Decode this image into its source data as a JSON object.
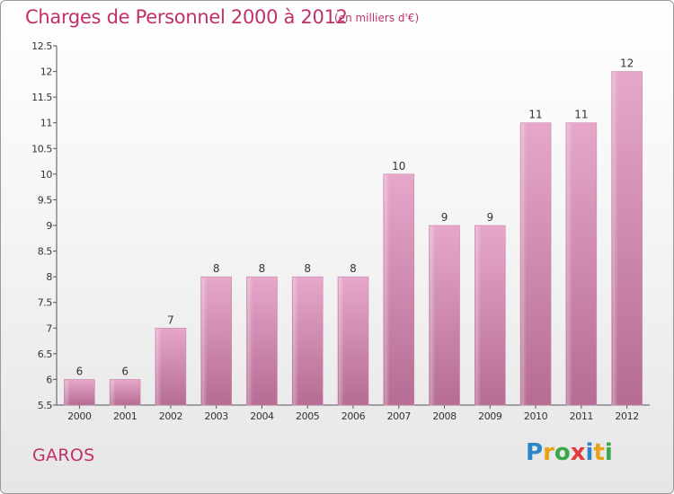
{
  "header": {
    "title": "Charges de Personnel 2000 à 2012",
    "subtitle": "(en milliers d'€)"
  },
  "footer": {
    "commune": "GAROS",
    "logo_text": "Proxiti",
    "logo_colors": [
      "#2e86c9",
      "#e8a21a",
      "#3aa84a",
      "#e23b3b",
      "#2e86c9",
      "#e8a21a",
      "#3aa84a"
    ]
  },
  "chart_data": {
    "type": "bar",
    "categories": [
      "2000",
      "2001",
      "2002",
      "2003",
      "2004",
      "2005",
      "2006",
      "2007",
      "2008",
      "2009",
      "2010",
      "2011",
      "2012"
    ],
    "values": [
      6,
      6,
      7,
      8,
      8,
      8,
      8,
      10,
      9,
      9,
      11,
      11,
      12
    ],
    "value_labels": [
      "6",
      "6",
      "7",
      "8",
      "8",
      "8",
      "8",
      "10",
      "9",
      "9",
      "11",
      "11",
      "12"
    ],
    "title": "Charges de Personnel 2000 à 2012",
    "ylim": [
      5.5,
      12.5
    ],
    "yticks": [
      "5.5",
      "6",
      "6.5",
      "7",
      "7.5",
      "8",
      "8.5",
      "9",
      "9.5",
      "10",
      "10.5",
      "11",
      "11.5",
      "12",
      "12.5"
    ],
    "bar_color": "#d67fac",
    "grid": false
  }
}
